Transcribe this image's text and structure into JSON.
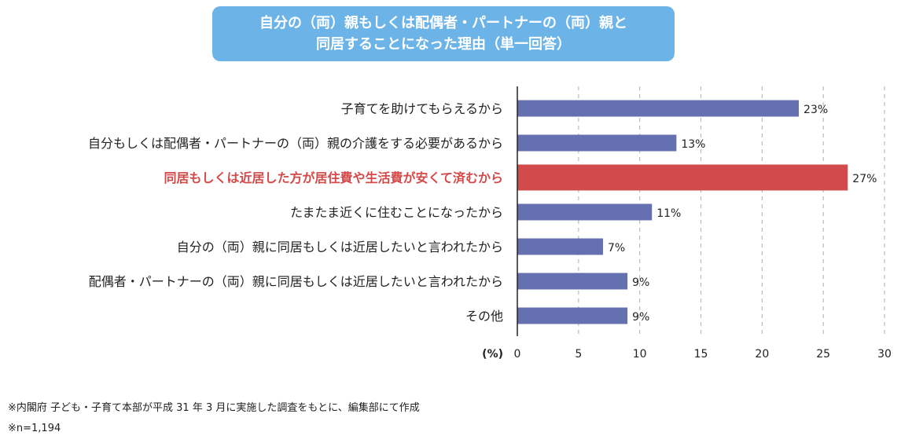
{
  "header": {
    "title_line1": "自分の（両）親もしくは配偶者・パートナーの（両）親と",
    "title_line2": "同居することになった理由（単一回答）"
  },
  "footnotes": {
    "source": "※内閣府 子ども・子育て本部が平成 31 年 3 月に実施した調査をもとに、編集部にて作成",
    "sample": "※n=1,194"
  },
  "colors": {
    "bar": "#6470b0",
    "highlight": "#d34a4a",
    "title_bg": "#6cb4e8"
  },
  "chart_data": {
    "type": "bar",
    "orientation": "horizontal",
    "categories": [
      "子育てを助けてもらえるから",
      "自分もしくは配偶者・パートナーの（両）親の介護をする必要があるから",
      "同居もしくは近居した方が居住費や生活費が安くて済むから",
      "たまたま近くに住むことになったから",
      "自分の（両）親に同居もしくは近居したいと言われたから",
      "配偶者・パートナーの（両）親に同居もしくは近居したいと言われたから",
      "その他"
    ],
    "values": [
      23,
      13,
      27,
      11,
      7,
      9,
      9
    ],
    "value_labels": [
      "23%",
      "13%",
      "27%",
      "11%",
      "7%",
      "9%",
      "9%"
    ],
    "highlight_index": 2,
    "xlim": [
      0,
      30
    ],
    "xticks": [
      "0",
      "5",
      "10",
      "15",
      "20",
      "25",
      "30"
    ],
    "xlabel": "(%)",
    "grid": "vertical dashed"
  }
}
